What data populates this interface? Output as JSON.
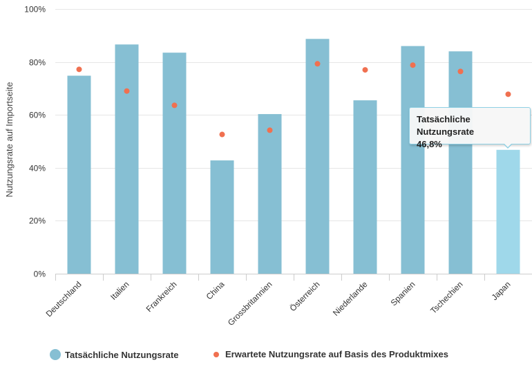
{
  "chart_data": {
    "type": "bar",
    "title": "",
    "xlabel": "",
    "ylabel": "Nutzungsrate auf Importseite",
    "ylim": [
      0,
      100
    ],
    "yticks": [
      "0%",
      "20%",
      "40%",
      "60%",
      "80%",
      "100%"
    ],
    "grid": true,
    "categories": [
      "Deutschland",
      "Italien",
      "Frankreich",
      "China",
      "Grossbritannien",
      "Österreich",
      "Niederlande",
      "Spanien",
      "Tschechien",
      "Japan"
    ],
    "series": [
      {
        "name": "Tatsächliche Nutzungsrate",
        "kind": "bar",
        "color": "#86bfd3",
        "values": [
          74.8,
          86.6,
          83.5,
          42.8,
          60.3,
          88.7,
          65.5,
          86.0,
          84.0,
          46.8
        ]
      },
      {
        "name": "Erwartete Nutzungsrate auf Basis des Produktmixes",
        "kind": "dot",
        "color": "#f07050",
        "values": [
          77.2,
          69.0,
          63.6,
          52.6,
          54.2,
          79.3,
          77.0,
          78.8,
          76.4,
          67.8
        ]
      }
    ],
    "highlight_index": 9,
    "highlight_color": "#9fd8ea",
    "legend_position": "bottom"
  },
  "tooltip": {
    "title": "Tatsächliche Nutzungsrate",
    "value": "46,8%"
  }
}
